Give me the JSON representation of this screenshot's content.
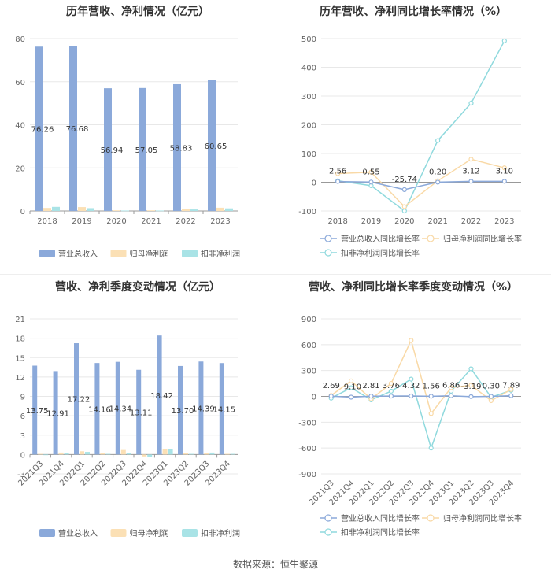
{
  "source": "数据来源：恒生聚源",
  "colors": {
    "revenue": "#8ba9da",
    "netprofit": "#fbe0b5",
    "deducted": "#a9e3e6",
    "revenue_line": "#8ba9da",
    "netprofit_line": "#f9d9a6",
    "deducted_line": "#8fd9dd",
    "grid": "#e8e8e8",
    "axis": "#999999"
  },
  "chart_data": [
    {
      "id": "annual-amount",
      "type": "bar",
      "title": "历年营收、净利情况（亿元）",
      "categories": [
        "2018",
        "2019",
        "2020",
        "2021",
        "2022",
        "2023"
      ],
      "ylim": [
        0,
        80
      ],
      "yticks": [
        0,
        20,
        40,
        60,
        80
      ],
      "series": [
        {
          "name": "营业总收入",
          "values": [
            76.26,
            76.68,
            56.94,
            57.05,
            58.83,
            60.65
          ],
          "labels": [
            "76.26",
            "76.68",
            "56.94",
            "57.05",
            "58.83",
            "60.65"
          ]
        },
        {
          "name": "归母净利润",
          "values": [
            1.4,
            1.8,
            0.3,
            0.3,
            0.9,
            1.5
          ]
        },
        {
          "name": "扣非净利润",
          "values": [
            1.9,
            1.3,
            0.2,
            0.2,
            0.7,
            1.2
          ]
        }
      ],
      "legend": "bottom",
      "grid": true
    },
    {
      "id": "annual-growth",
      "type": "line",
      "title": "历年营收、净利同比增长率情况（%）",
      "categories": [
        "2018",
        "2019",
        "2020",
        "2021",
        "2022",
        "2023"
      ],
      "ylim": [
        -100,
        500
      ],
      "yticks": [
        -100,
        0,
        100,
        200,
        300,
        400,
        500
      ],
      "series": [
        {
          "name": "营业总收入同比增长率",
          "values": [
            2.56,
            0.55,
            -25.74,
            0.2,
            3.12,
            3.1
          ],
          "labels": [
            "2.56",
            "0.55",
            "-25.74",
            "0.20",
            "3.12",
            "3.10"
          ]
        },
        {
          "name": "归母净利润同比增长率",
          "values": [
            30,
            35,
            -85,
            5,
            80,
            50
          ]
        },
        {
          "name": "扣非净利润同比增长率",
          "values": [
            5,
            -12,
            -100,
            145,
            275,
            492
          ]
        }
      ],
      "legend": "bottom",
      "grid": true
    },
    {
      "id": "quarterly-amount",
      "type": "bar",
      "title": "营收、净利季度变动情况（亿元）",
      "categories": [
        "2021Q3",
        "2021Q4",
        "2022Q1",
        "2022Q2",
        "2022Q3",
        "2022Q4",
        "2023Q1",
        "2023Q2",
        "2023Q3",
        "2023Q4"
      ],
      "ylim": [
        -3,
        21
      ],
      "yticks": [
        -3,
        0,
        3,
        6,
        9,
        12,
        15,
        18,
        21
      ],
      "series": [
        {
          "name": "营业总收入",
          "values": [
            13.75,
            12.91,
            17.22,
            14.16,
            14.34,
            13.11,
            18.42,
            13.7,
            14.39,
            14.15
          ],
          "labels": [
            "13.75",
            "12.91",
            "17.22",
            "14.16",
            "14.34",
            "13.11",
            "18.42",
            "13.70",
            "14.39",
            "14.15"
          ]
        },
        {
          "name": "归母净利润",
          "values": [
            0.1,
            0.3,
            0.5,
            0.2,
            0.7,
            -0.3,
            0.8,
            0.2,
            0.2,
            0.1
          ]
        },
        {
          "name": "扣非净利润",
          "values": [
            -0.1,
            0.2,
            0.4,
            0.1,
            0.2,
            -0.4,
            0.8,
            0.1,
            0.3,
            0.1
          ]
        }
      ],
      "legend": "bottom",
      "grid": true
    },
    {
      "id": "quarterly-growth",
      "type": "line",
      "title": "营收、净利同比增长率季度变动情况（%）",
      "categories": [
        "2021Q3",
        "2021Q4",
        "2022Q1",
        "2022Q2",
        "2022Q3",
        "2022Q4",
        "2023Q1",
        "2023Q2",
        "2023Q3",
        "2023Q4"
      ],
      "ylim": [
        -900,
        900
      ],
      "yticks": [
        -900,
        -600,
        -300,
        0,
        300,
        600,
        900
      ],
      "series": [
        {
          "name": "营业总收入同比增长率",
          "values": [
            2.69,
            -9.1,
            2.81,
            3.76,
            4.32,
            1.56,
            6.86,
            -3.19,
            0.3,
            7.89
          ],
          "labels": [
            "2.69",
            "-9.10",
            "2.81",
            "3.76",
            "4.32",
            "1.56",
            "6.86",
            "-3.19",
            "0.30",
            "7.89"
          ]
        },
        {
          "name": "归母净利润同比增长率",
          "values": [
            10,
            180,
            -30,
            150,
            650,
            -200,
            100,
            130,
            -50,
            80
          ]
        },
        {
          "name": "扣非净利润同比增长率",
          "values": [
            -20,
            100,
            -40,
            60,
            200,
            -600,
            60,
            320,
            -10,
            70
          ]
        }
      ],
      "legend": "bottom",
      "grid": true
    }
  ]
}
